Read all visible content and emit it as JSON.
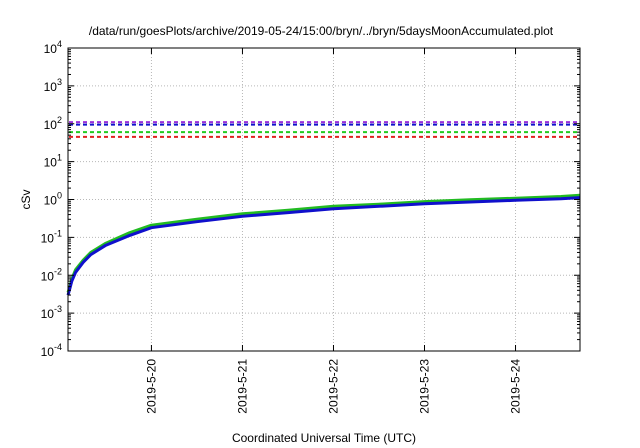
{
  "chart_data": {
    "type": "line",
    "title": "/data/run/goesPlots/archive/2019-05-24/15:00/bryn/../bryn/5daysMoonAccumulated.plot",
    "xlabel": "Coordinated Universal Time (UTC)",
    "ylabel": "cSv",
    "yscale": "log",
    "ylim": [
      0.0001,
      10000
    ],
    "xlim": [
      "2019-05-19 02:00",
      "2019-05-24 17:00"
    ],
    "grid": true,
    "x_ticks": [
      "2019-5-20",
      "2019-5-21",
      "2019-5-22",
      "2019-5-23",
      "2019-5-24"
    ],
    "y_ticks": [
      {
        "base": "10",
        "exp": "-4"
      },
      {
        "base": "10",
        "exp": "-3"
      },
      {
        "base": "10",
        "exp": "-2"
      },
      {
        "base": "10",
        "exp": "-1"
      },
      {
        "base": "10",
        "exp": "0"
      },
      {
        "base": "10",
        "exp": "1"
      },
      {
        "base": "10",
        "exp": "2"
      },
      {
        "base": "10",
        "exp": "3"
      },
      {
        "base": "10",
        "exp": "4"
      }
    ],
    "thresholds": [
      {
        "value": 110,
        "color": "#9b30d9"
      },
      {
        "value": 95,
        "color": "#1010cc"
      },
      {
        "value": 60,
        "color": "#22cc22"
      },
      {
        "value": 45,
        "color": "#e02020"
      }
    ],
    "series": [
      {
        "color": "#22bb22",
        "x": [
          "2019-05-19 02:00",
          "2019-05-19 02:30",
          "2019-05-19 03:00",
          "2019-05-19 04:00",
          "2019-05-19 06:00",
          "2019-05-19 08:00",
          "2019-05-19 12:00",
          "2019-05-19 18:00",
          "2019-05-20 00:00",
          "2019-05-20 12:00",
          "2019-05-21 00:00",
          "2019-05-21 12:00",
          "2019-05-22 00:00",
          "2019-05-22 12:00",
          "2019-05-23 00:00",
          "2019-05-23 12:00",
          "2019-05-24 00:00",
          "2019-05-24 12:00",
          "2019-05-24 17:00"
        ],
        "values": [
          0.0035,
          0.005,
          0.008,
          0.014,
          0.025,
          0.04,
          0.07,
          0.13,
          0.21,
          0.3,
          0.42,
          0.52,
          0.66,
          0.75,
          0.88,
          0.98,
          1.08,
          1.2,
          1.3
        ]
      },
      {
        "color": "#1010cc",
        "x": [
          "2019-05-19 02:00",
          "2019-05-19 02:30",
          "2019-05-19 03:00",
          "2019-05-19 04:00",
          "2019-05-19 06:00",
          "2019-05-19 08:00",
          "2019-05-19 12:00",
          "2019-05-19 18:00",
          "2019-05-20 00:00",
          "2019-05-20 12:00",
          "2019-05-21 00:00",
          "2019-05-21 12:00",
          "2019-05-22 00:00",
          "2019-05-22 12:00",
          "2019-05-23 00:00",
          "2019-05-23 12:00",
          "2019-05-24 00:00",
          "2019-05-24 12:00",
          "2019-05-24 17:00"
        ],
        "values": [
          0.003,
          0.0045,
          0.007,
          0.012,
          0.022,
          0.035,
          0.062,
          0.11,
          0.18,
          0.26,
          0.36,
          0.45,
          0.57,
          0.66,
          0.77,
          0.86,
          0.95,
          1.05,
          1.12
        ]
      }
    ]
  }
}
